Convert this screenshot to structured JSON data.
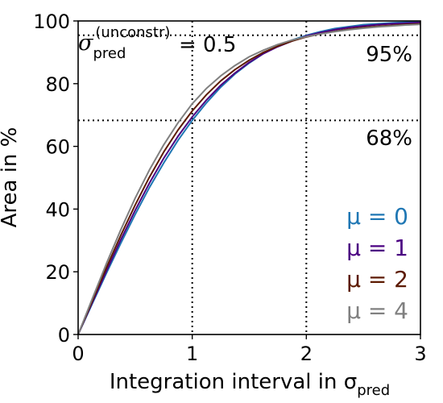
{
  "chart_data": {
    "type": "line",
    "title": "",
    "xlabel": "Integration interval in σ",
    "xlabel_sub": "pred",
    "ylabel": "Area in %",
    "xlim": [
      0,
      3
    ],
    "ylim": [
      0,
      100
    ],
    "xticks": [
      0,
      1,
      2,
      3
    ],
    "yticks": [
      0,
      20,
      40,
      60,
      80,
      100
    ],
    "grid": false,
    "reference_lines": {
      "horizontal": [
        68.27,
        95.45
      ],
      "vertical": [
        1,
        2
      ]
    },
    "annotations": {
      "sigma_symbol": "σ",
      "sigma_sub": "pred",
      "sigma_sup": "(unconstr)",
      "sigma_value": "= 0.5",
      "p95": "95%",
      "p68": "68%"
    },
    "legend_position": "lower-right",
    "x": [
      0,
      0.125,
      0.25,
      0.375,
      0.5,
      0.625,
      0.75,
      0.875,
      1.0,
      1.125,
      1.25,
      1.375,
      1.5,
      1.625,
      1.75,
      1.875,
      2.0,
      2.125,
      2.25,
      2.375,
      2.5,
      2.625,
      2.75,
      2.875,
      3.0
    ],
    "series": [
      {
        "name": "μ = 0",
        "color": "#1f77b4",
        "values": [
          0,
          9.9,
          19.7,
          29.2,
          38.3,
          46.9,
          54.7,
          61.9,
          68.3,
          73.9,
          78.9,
          83.1,
          86.6,
          89.6,
          92.0,
          93.9,
          95.4,
          96.6,
          97.6,
          98.2,
          98.8,
          99.1,
          99.4,
          99.6,
          99.7
        ]
      },
      {
        "name": "μ = 1",
        "color": "#4b0082",
        "values": [
          0,
          10.3,
          20.4,
          30.3,
          39.6,
          48.3,
          56.2,
          63.2,
          69.4,
          74.8,
          79.5,
          83.4,
          86.8,
          89.6,
          91.8,
          93.6,
          95.2,
          96.3,
          97.2,
          97.9,
          98.4,
          98.8,
          99.1,
          99.3,
          99.5
        ]
      },
      {
        "name": "μ = 2",
        "color": "#5c1a00",
        "values": [
          0,
          10.8,
          21.5,
          31.7,
          41.3,
          50.2,
          58.2,
          65.2,
          71.3,
          76.5,
          80.9,
          84.5,
          87.5,
          90.0,
          92.0,
          93.6,
          94.9,
          95.9,
          96.7,
          97.4,
          97.9,
          98.3,
          98.6,
          98.9,
          99.1
        ]
      },
      {
        "name": "μ = 4",
        "color": "#808080",
        "values": [
          0,
          11.5,
          22.8,
          33.5,
          43.5,
          52.5,
          60.5,
          67.5,
          73.6,
          78.5,
          82.5,
          85.8,
          88.6,
          90.7,
          92.5,
          93.9,
          95.0,
          95.9,
          96.6,
          97.2,
          97.7,
          98.1,
          98.4,
          98.7,
          98.9
        ]
      }
    ]
  }
}
